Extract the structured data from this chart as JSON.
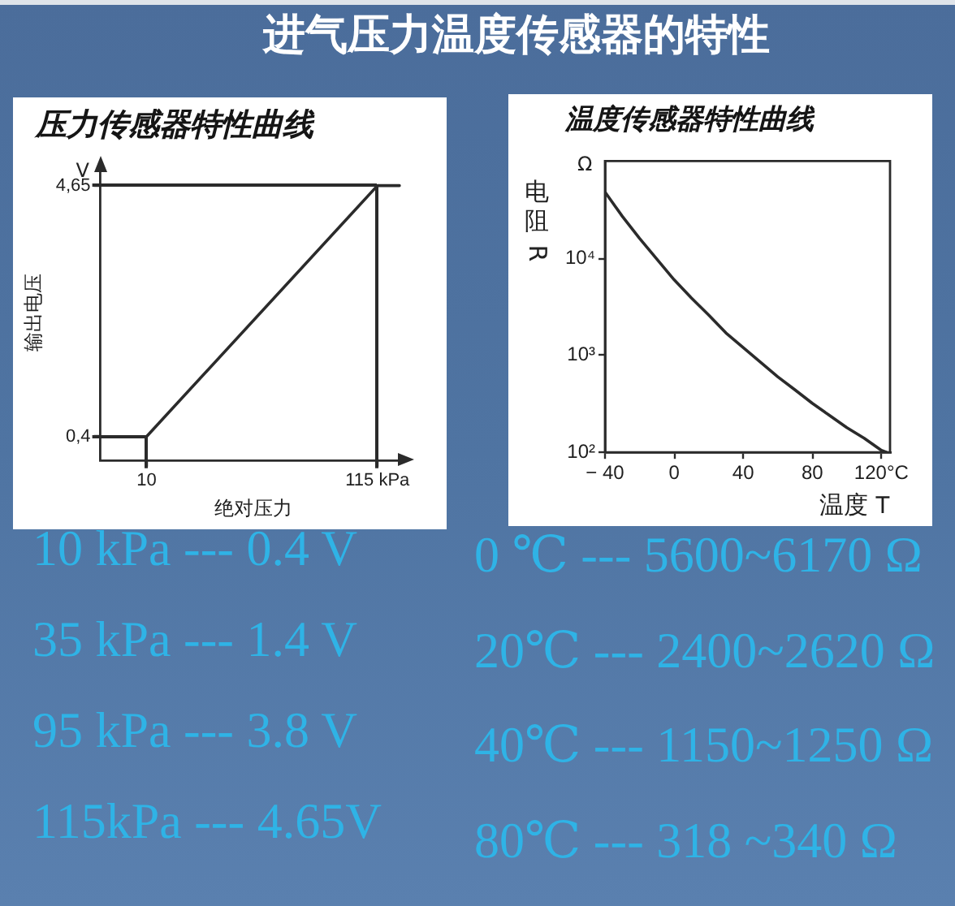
{
  "chart_data": [
    {
      "type": "other",
      "title": "进气压力温度传感器的特性"
    },
    {
      "type": "line",
      "title": "压力传感器特性曲线",
      "xlabel": "绝对压力",
      "ylabel": "输出电压",
      "x": [
        0,
        10,
        115,
        125
      ],
      "series": [
        {
          "color": "#2b2b2b",
          "values": [
            0.4,
            0.4,
            4.65,
            4.65
          ]
        }
      ],
      "xlim": [
        -11,
        128
      ],
      "ylim": [
        0,
        5
      ],
      "xticks": [
        10,
        {
          "value": 115,
          "label": "115 kPa"
        }
      ],
      "yticks": [
        {
          "value": 0.4,
          "label": "0,4"
        },
        {
          "value": 4.65,
          "label": "4,65"
        }
      ],
      "ref_lines": [
        {
          "axis": "y",
          "value": 0.4
        },
        {
          "axis": "y",
          "value": 4.65
        },
        {
          "axis": "x",
          "value": 115
        }
      ],
      "marker": "none",
      "annotations": [
        "V",
        "10 kPa --- 0.4 V",
        "35 kPa --- 1.4 V",
        "95 kPa --- 3.8 V",
        "115kPa --- 4.65V"
      ]
    },
    {
      "type": "line",
      "title": "温度传感器特性曲线",
      "xlabel": "温度 T",
      "ylabel": "电阻 R",
      "log": "y",
      "x": [
        -40,
        -30,
        -20,
        -10,
        0,
        10,
        20,
        30,
        40,
        50,
        60,
        70,
        80,
        90,
        100,
        110,
        120,
        123
      ],
      "series": [
        {
          "color": "#2b2b2b",
          "values": [
            48000,
            27000,
            16000,
            9800,
            6000,
            3900,
            2600,
            1700,
            1200,
            850,
            600,
            440,
            320,
            240,
            180,
            140,
            105,
            100
          ]
        }
      ],
      "xlim": [
        -40,
        125
      ],
      "ylim": [
        100,
        100000
      ],
      "xticks": [
        {
          "value": -40,
          "label": "− 40"
        },
        0,
        40,
        80,
        {
          "value": 120,
          "label": "120°C"
        }
      ],
      "yticks": [
        {
          "value": 100,
          "label": "10²"
        },
        {
          "value": 1000,
          "label": "10³"
        },
        {
          "value": 10000,
          "label": "10⁴"
        }
      ],
      "marker": "none",
      "annotations": [
        "Ω",
        "0 ℃ --- 5600~6170 Ω",
        "20℃ --- 2400~2620 Ω",
        "40℃ --- 1150~1250 Ω",
        "80℃ --- 318 ~340 Ω"
      ]
    }
  ]
}
